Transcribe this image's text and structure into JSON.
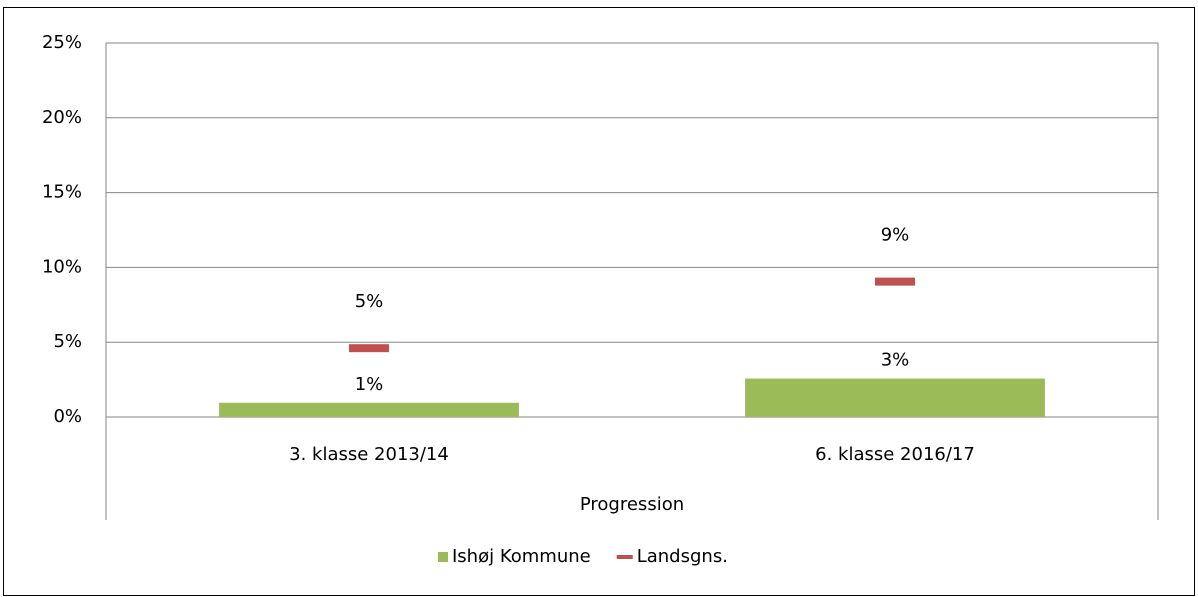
{
  "chart_data": {
    "type": "bar",
    "categories": [
      "3. klasse 2013/14",
      "6. klasse 2016/17"
    ],
    "xlabel": "Progression",
    "series": [
      {
        "name": "Ishøj Kommune",
        "color": "#9bbb59",
        "style": "bar",
        "values": [
          0.95,
          2.57
        ],
        "value_labels": [
          "1%",
          "3%"
        ]
      },
      {
        "name": "Landsgns.",
        "color": "#c0504d",
        "style": "dash",
        "values": [
          4.6,
          9.05
        ],
        "value_labels": [
          "5%",
          "9%"
        ]
      }
    ],
    "ylim": [
      0,
      25
    ],
    "yticks": [
      {
        "value": 0,
        "label": "0%"
      },
      {
        "value": 5,
        "label": "5%"
      },
      {
        "value": 10,
        "label": "10%"
      },
      {
        "value": 15,
        "label": "15%"
      },
      {
        "value": 20,
        "label": "20%"
      },
      {
        "value": 25,
        "label": "25%"
      }
    ],
    "grid": true,
    "legend": "bottom"
  }
}
